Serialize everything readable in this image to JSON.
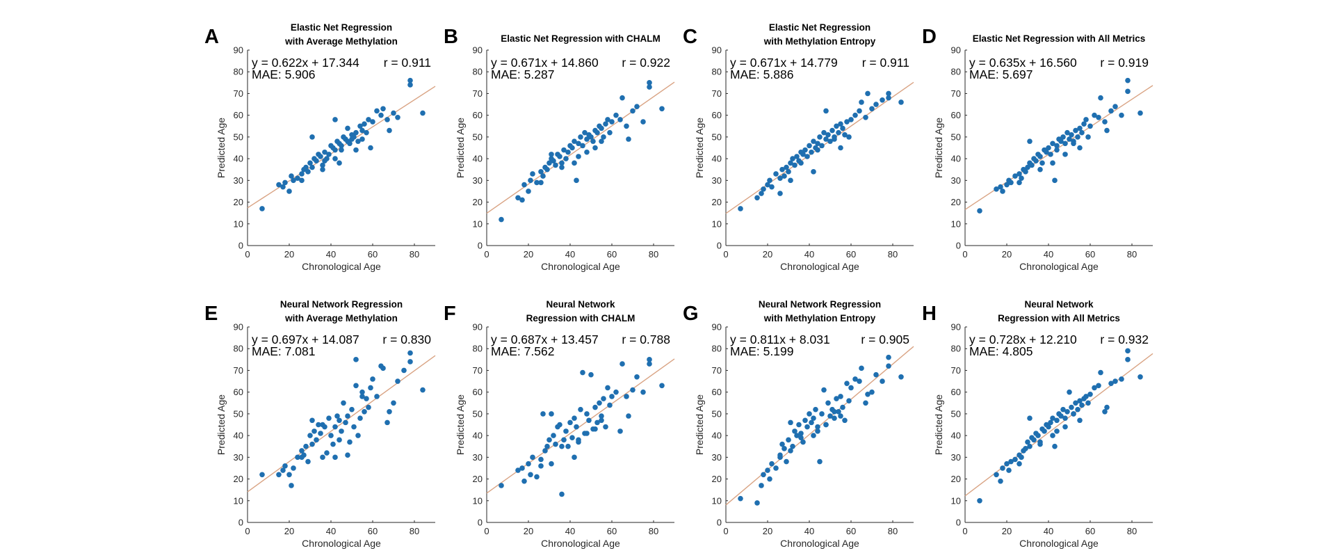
{
  "chart_data": [
    {
      "panel": "A",
      "type": "scatter",
      "title": [
        "Elastic Net Regression",
        "with Average Methylation"
      ],
      "xlabel": "Chronological Age",
      "ylabel": "Predicted Age",
      "xlim": [
        0,
        90
      ],
      "ylim": [
        0,
        90
      ],
      "xticks": [
        0,
        20,
        40,
        60,
        80
      ],
      "yticks": [
        0,
        10,
        20,
        30,
        40,
        50,
        60,
        70,
        80,
        90
      ],
      "equation": "y = 0.622x + 17.344",
      "r_text": "r = 0.911",
      "mae_text": "MAE: 5.906",
      "slope": 0.622,
      "intercept": 17.344,
      "x": [
        7,
        15,
        17,
        18,
        20,
        21,
        22,
        24,
        26,
        27,
        28,
        29,
        30,
        31,
        32,
        33,
        34,
        35,
        36,
        37,
        37,
        38,
        39,
        40,
        41,
        42,
        42,
        43,
        44,
        45,
        45,
        46,
        47,
        48,
        49,
        50,
        50,
        51,
        52,
        53,
        54,
        55,
        56,
        57,
        58,
        60,
        62,
        64,
        65,
        67,
        70,
        72,
        78,
        78,
        84,
        31,
        42,
        48,
        55,
        59,
        68,
        36,
        44,
        52,
        26
      ],
      "y": [
        17,
        28,
        27,
        29,
        25,
        32,
        30,
        31,
        33,
        35,
        36,
        34,
        38,
        36,
        40,
        39,
        42,
        41,
        37,
        43,
        39,
        40,
        42,
        46,
        45,
        44,
        40,
        48,
        47,
        46,
        44,
        50,
        49,
        48,
        47,
        51,
        49,
        50,
        52,
        48,
        55,
        53,
        56,
        52,
        58,
        57,
        62,
        60,
        63,
        58,
        61,
        59,
        74,
        76,
        61,
        50,
        58,
        54,
        49,
        45,
        53,
        35,
        38,
        44,
        30
      ]
    },
    {
      "panel": "B",
      "type": "scatter",
      "title": [
        "Elastic Net Regression with CHALM"
      ],
      "xlabel": "Chronological Age",
      "ylabel": "Predicted Age",
      "xlim": [
        0,
        90
      ],
      "ylim": [
        0,
        90
      ],
      "xticks": [
        0,
        20,
        40,
        60,
        80
      ],
      "yticks": [
        0,
        10,
        20,
        30,
        40,
        50,
        60,
        70,
        80,
        90
      ],
      "equation": "y = 0.671x + 14.860",
      "r_text": "r = 0.922",
      "mae_text": "MAE: 5.287",
      "slope": 0.671,
      "intercept": 14.86,
      "x": [
        7,
        15,
        17,
        18,
        20,
        21,
        22,
        24,
        26,
        27,
        28,
        29,
        30,
        31,
        32,
        33,
        34,
        35,
        36,
        37,
        38,
        39,
        40,
        41,
        42,
        43,
        44,
        45,
        46,
        47,
        48,
        49,
        50,
        51,
        52,
        53,
        54,
        55,
        56,
        57,
        58,
        60,
        62,
        64,
        65,
        67,
        70,
        72,
        75,
        78,
        78,
        84,
        31,
        42,
        48,
        55,
        59,
        68,
        36,
        44,
        52,
        26
      ],
      "y": [
        12,
        22,
        21,
        28,
        25,
        30,
        33,
        29,
        34,
        32,
        36,
        35,
        38,
        40,
        39,
        37,
        42,
        41,
        38,
        44,
        40,
        43,
        46,
        45,
        48,
        30,
        47,
        50,
        46,
        52,
        49,
        51,
        50,
        48,
        53,
        52,
        55,
        54,
        50,
        56,
        58,
        57,
        60,
        58,
        68,
        55,
        62,
        64,
        57,
        73,
        75,
        63,
        42,
        38,
        43,
        48,
        52,
        49,
        36,
        41,
        45,
        29
      ]
    },
    {
      "panel": "C",
      "type": "scatter",
      "title": [
        "Elastic Net Regression",
        "with Methylation Entropy"
      ],
      "xlabel": "Chronological Age",
      "ylabel": "Predicted Age",
      "xlim": [
        0,
        90
      ],
      "ylim": [
        0,
        90
      ],
      "xticks": [
        0,
        20,
        40,
        60,
        80
      ],
      "yticks": [
        0,
        10,
        20,
        30,
        40,
        50,
        60,
        70,
        80,
        90
      ],
      "equation": "y = 0.671x + 14.779",
      "r_text": "r = 0.911",
      "mae_text": "MAE: 5.886",
      "slope": 0.671,
      "intercept": 14.779,
      "x": [
        7,
        15,
        17,
        18,
        20,
        21,
        22,
        24,
        26,
        27,
        28,
        29,
        30,
        31,
        32,
        33,
        34,
        35,
        36,
        37,
        38,
        39,
        40,
        41,
        42,
        43,
        44,
        45,
        46,
        47,
        48,
        49,
        50,
        51,
        52,
        53,
        54,
        55,
        56,
        57,
        58,
        60,
        62,
        64,
        65,
        67,
        70,
        72,
        75,
        78,
        78,
        84,
        31,
        42,
        48,
        55,
        59,
        68,
        36,
        44,
        52,
        26
      ],
      "y": [
        17,
        22,
        24,
        26,
        28,
        30,
        27,
        33,
        31,
        35,
        32,
        36,
        34,
        38,
        40,
        37,
        41,
        39,
        43,
        42,
        44,
        41,
        46,
        43,
        48,
        45,
        47,
        50,
        46,
        52,
        49,
        51,
        48,
        53,
        50,
        55,
        52,
        56,
        54,
        51,
        57,
        58,
        60,
        62,
        66,
        59,
        63,
        65,
        67,
        68,
        70,
        66,
        30,
        34,
        62,
        45,
        50,
        70,
        38,
        44,
        49,
        24
      ]
    },
    {
      "panel": "D",
      "type": "scatter",
      "title": [
        "Elastic Net Regression with All Metrics"
      ],
      "xlabel": "Chronological Age",
      "ylabel": "Predicted Age",
      "xlim": [
        0,
        90
      ],
      "ylim": [
        0,
        90
      ],
      "xticks": [
        0,
        20,
        40,
        60,
        80
      ],
      "yticks": [
        0,
        10,
        20,
        30,
        40,
        50,
        60,
        70,
        80,
        90
      ],
      "equation": "y = 0.635x + 16.560",
      "r_text": "r = 0.919",
      "mae_text": "MAE: 5.697",
      "slope": 0.635,
      "intercept": 16.56,
      "x": [
        7,
        15,
        17,
        18,
        20,
        21,
        22,
        24,
        26,
        27,
        28,
        29,
        30,
        31,
        32,
        33,
        34,
        35,
        36,
        37,
        38,
        39,
        40,
        41,
        42,
        43,
        44,
        45,
        46,
        47,
        48,
        49,
        50,
        51,
        52,
        53,
        54,
        55,
        56,
        57,
        58,
        60,
        62,
        64,
        65,
        67,
        70,
        72,
        75,
        78,
        78,
        84,
        31,
        42,
        48,
        55,
        59,
        68,
        36,
        44,
        52,
        26
      ],
      "y": [
        16,
        26,
        27,
        25,
        28,
        30,
        29,
        32,
        33,
        31,
        35,
        34,
        36,
        38,
        37,
        40,
        39,
        42,
        41,
        38,
        44,
        43,
        45,
        42,
        47,
        30,
        46,
        49,
        48,
        50,
        47,
        52,
        49,
        51,
        48,
        53,
        50,
        54,
        52,
        56,
        58,
        55,
        60,
        59,
        68,
        57,
        62,
        64,
        60,
        71,
        76,
        61,
        48,
        38,
        42,
        45,
        50,
        53,
        35,
        44,
        47,
        29
      ]
    },
    {
      "panel": "E",
      "type": "scatter",
      "title": [
        "Neural Network Regression",
        "with Average Methylation"
      ],
      "xlabel": "Chronological Age",
      "ylabel": "Predicted Age",
      "xlim": [
        0,
        90
      ],
      "ylim": [
        0,
        90
      ],
      "xticks": [
        0,
        20,
        40,
        60,
        80
      ],
      "yticks": [
        0,
        10,
        20,
        30,
        40,
        50,
        60,
        70,
        80,
        90
      ],
      "equation": "y = 0.697x + 14.087",
      "r_text": "r = 0.830",
      "mae_text": "MAE: 7.081",
      "slope": 0.697,
      "intercept": 14.087,
      "x": [
        7,
        15,
        17,
        18,
        20,
        21,
        22,
        24,
        26,
        27,
        28,
        29,
        30,
        31,
        32,
        33,
        34,
        35,
        36,
        37,
        38,
        39,
        40,
        41,
        42,
        43,
        44,
        45,
        46,
        47,
        48,
        49,
        50,
        51,
        52,
        53,
        54,
        55,
        56,
        57,
        58,
        60,
        62,
        64,
        65,
        67,
        70,
        72,
        75,
        78,
        78,
        84,
        31,
        42,
        48,
        55,
        59,
        68,
        36,
        44,
        52,
        26
      ],
      "y": [
        22,
        22,
        24,
        26,
        22,
        17,
        25,
        30,
        33,
        31,
        35,
        28,
        40,
        36,
        42,
        38,
        45,
        41,
        30,
        44,
        32,
        48,
        40,
        36,
        44,
        49,
        38,
        42,
        55,
        46,
        49,
        37,
        52,
        44,
        75,
        40,
        48,
        60,
        51,
        57,
        53,
        66,
        58,
        72,
        71,
        46,
        55,
        65,
        70,
        78,
        74,
        61,
        47,
        30,
        31,
        58,
        62,
        51,
        45,
        47,
        63,
        30
      ]
    },
    {
      "panel": "F",
      "type": "scatter",
      "title": [
        "Neural Network",
        "Regression with CHALM"
      ],
      "xlabel": "Chronological Age",
      "ylabel": "Predicted Age",
      "xlim": [
        0,
        90
      ],
      "ylim": [
        0,
        90
      ],
      "xticks": [
        0,
        20,
        40,
        60,
        80
      ],
      "yticks": [
        0,
        10,
        20,
        30,
        40,
        50,
        60,
        70,
        80,
        90
      ],
      "equation": "y = 0.687x + 13.457",
      "r_text": "r = 0.788",
      "mae_text": "MAE: 7.562",
      "slope": 0.687,
      "intercept": 13.457,
      "x": [
        7,
        15,
        17,
        18,
        20,
        21,
        22,
        24,
        26,
        27,
        28,
        29,
        30,
        31,
        32,
        33,
        34,
        35,
        36,
        37,
        38,
        39,
        40,
        41,
        42,
        43,
        44,
        45,
        46,
        47,
        48,
        49,
        50,
        51,
        52,
        53,
        54,
        55,
        56,
        57,
        58,
        60,
        62,
        64,
        65,
        67,
        70,
        72,
        75,
        78,
        78,
        84,
        31,
        42,
        48,
        55,
        59,
        68,
        36,
        44,
        52,
        26
      ],
      "y": [
        17,
        24,
        25,
        19,
        27,
        22,
        30,
        21,
        29,
        50,
        33,
        35,
        38,
        27,
        40,
        36,
        44,
        45,
        13,
        38,
        42,
        35,
        46,
        39,
        48,
        44,
        37,
        52,
        69,
        41,
        50,
        47,
        68,
        43,
        53,
        46,
        55,
        49,
        57,
        44,
        62,
        58,
        60,
        42,
        73,
        58,
        61,
        67,
        60,
        73,
        75,
        63,
        50,
        30,
        41,
        47,
        54,
        49,
        35,
        38,
        43,
        26
      ]
    },
    {
      "panel": "G",
      "type": "scatter",
      "title": [
        "Neural Network Regression",
        "with Methylation Entropy"
      ],
      "xlabel": "Chronological Age",
      "ylabel": "Predicted Age",
      "xlim": [
        0,
        90
      ],
      "ylim": [
        0,
        90
      ],
      "xticks": [
        0,
        20,
        40,
        60,
        80
      ],
      "yticks": [
        0,
        10,
        20,
        30,
        40,
        50,
        60,
        70,
        80,
        90
      ],
      "equation": "y = 0.811x + 8.031",
      "r_text": "r = 0.905",
      "mae_text": "MAE: 5.199",
      "slope": 0.811,
      "intercept": 8.031,
      "x": [
        7,
        15,
        17,
        18,
        20,
        21,
        22,
        24,
        26,
        27,
        28,
        29,
        30,
        31,
        32,
        33,
        34,
        35,
        36,
        37,
        38,
        39,
        40,
        41,
        42,
        43,
        44,
        45,
        46,
        47,
        48,
        49,
        50,
        51,
        52,
        53,
        54,
        55,
        56,
        57,
        58,
        60,
        62,
        64,
        65,
        67,
        70,
        72,
        75,
        78,
        78,
        84,
        31,
        42,
        48,
        55,
        59,
        68,
        36,
        44,
        52,
        26
      ],
      "y": [
        11,
        9,
        17,
        22,
        24,
        20,
        27,
        25,
        30,
        36,
        34,
        28,
        38,
        46,
        35,
        42,
        40,
        45,
        41,
        37,
        47,
        44,
        50,
        46,
        48,
        52,
        42,
        28,
        50,
        61,
        45,
        55,
        49,
        52,
        48,
        57,
        51,
        58,
        53,
        47,
        64,
        62,
        66,
        65,
        71,
        55,
        60,
        68,
        65,
        72,
        76,
        67,
        33,
        40,
        45,
        49,
        56,
        59,
        39,
        44,
        51,
        31
      ]
    },
    {
      "panel": "H",
      "type": "scatter",
      "title": [
        "Neural Network",
        "Regression with All Metrics"
      ],
      "xlabel": "Chronological Age",
      "ylabel": "Predicted Age",
      "xlim": [
        0,
        90
      ],
      "ylim": [
        0,
        90
      ],
      "xticks": [
        0,
        20,
        40,
        60,
        80
      ],
      "yticks": [
        0,
        10,
        20,
        30,
        40,
        50,
        60,
        70,
        80,
        90
      ],
      "equation": "y = 0.728x + 12.210",
      "r_text": "r = 0.932",
      "mae_text": "MAE: 4.805",
      "slope": 0.728,
      "intercept": 12.21,
      "x": [
        7,
        15,
        17,
        18,
        20,
        21,
        22,
        24,
        26,
        27,
        28,
        29,
        30,
        31,
        32,
        33,
        34,
        35,
        36,
        37,
        38,
        39,
        40,
        41,
        42,
        43,
        44,
        45,
        46,
        47,
        48,
        49,
        50,
        51,
        52,
        53,
        54,
        55,
        56,
        57,
        58,
        60,
        62,
        64,
        65,
        67,
        70,
        72,
        75,
        78,
        78,
        84,
        31,
        42,
        48,
        55,
        59,
        68,
        36,
        44,
        52,
        26
      ],
      "y": [
        10,
        22,
        19,
        25,
        27,
        24,
        28,
        29,
        31,
        30,
        33,
        34,
        37,
        35,
        39,
        38,
        41,
        40,
        37,
        43,
        42,
        45,
        44,
        46,
        48,
        35,
        47,
        50,
        49,
        52,
        48,
        51,
        60,
        53,
        50,
        55,
        52,
        56,
        54,
        57,
        58,
        59,
        62,
        63,
        69,
        51,
        64,
        65,
        66,
        75,
        79,
        67,
        48,
        40,
        44,
        47,
        55,
        53,
        36,
        42,
        50,
        27
      ]
    }
  ]
}
